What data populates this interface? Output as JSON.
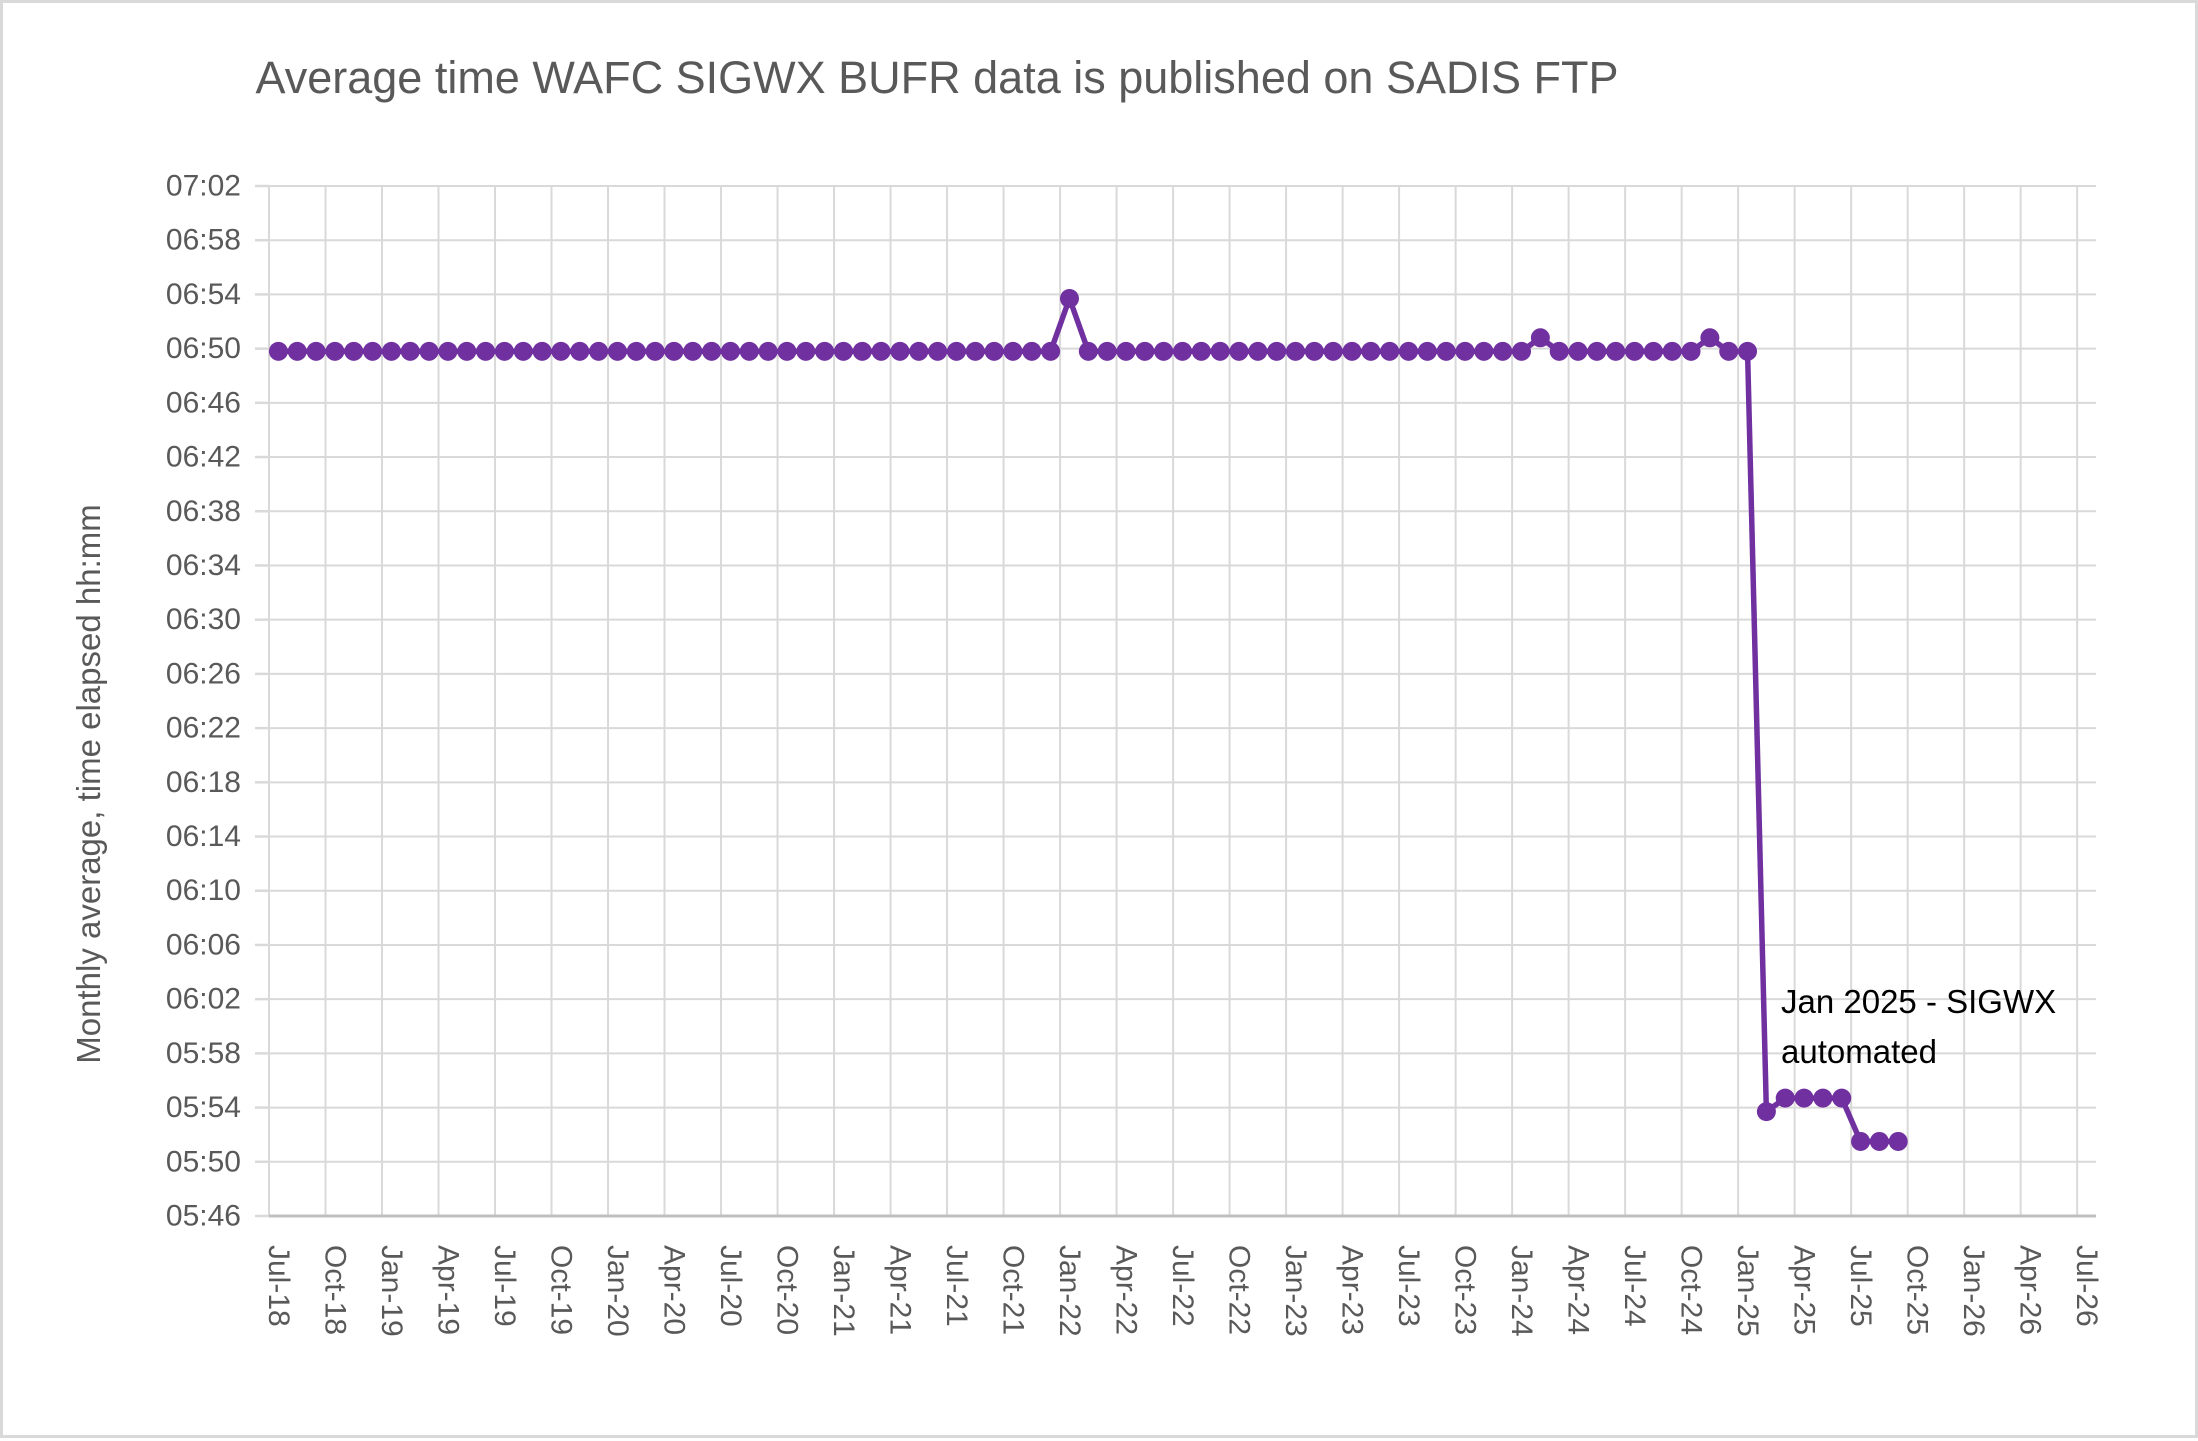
{
  "colors": {
    "series": "#7030A0",
    "text": "#595959",
    "gridline": "#D9D9D9",
    "axis_line": "#BFBFBF",
    "annotation_text": "#000000",
    "frame_border": "#D9D9D9"
  },
  "chart_data": {
    "type": "line",
    "title": "Average time WAFC SIGWX BUFR data is published on SADIS FTP",
    "ylabel": "Monthly average, time elapsed  hh:mm",
    "xlabel": "",
    "grid": true,
    "legend": false,
    "marker": "circle",
    "y_axis_range_hhmm": [
      "05:46",
      "07:02"
    ],
    "y_tick_step_minutes": 4,
    "y_tick_labels": [
      "07:02",
      "06:58",
      "06:54",
      "06:50",
      "06:46",
      "06:42",
      "06:38",
      "06:34",
      "06:30",
      "06:26",
      "06:22",
      "06:18",
      "06:14",
      "06:10",
      "06:06",
      "06:02",
      "05:58",
      "05:54",
      "05:50",
      "05:46"
    ],
    "x_tick_labels": [
      "Jul-18",
      "Oct-18",
      "Jan-19",
      "Apr-19",
      "Jul-19",
      "Oct-19",
      "Jan-20",
      "Apr-20",
      "Jul-20",
      "Oct-20",
      "Jan-21",
      "Apr-21",
      "Jul-21",
      "Oct-21",
      "Jan-22",
      "Apr-22",
      "Jul-22",
      "Oct-22",
      "Jan-23",
      "Apr-23",
      "Jul-23",
      "Oct-23",
      "Jan-24",
      "Apr-24",
      "Jul-24",
      "Oct-24",
      "Jan-25",
      "Apr-25",
      "Jul-25",
      "Oct-25",
      "Jan-26",
      "Apr-26",
      "Jul-26"
    ],
    "annotation": {
      "line1": "Jan 2025 - SIGWX",
      "line2": "automated"
    },
    "series": [
      {
        "color": "#7030A0",
        "points": [
          [
            "Jul-18",
            "06:49:48"
          ],
          [
            "Aug-18",
            "06:49:48"
          ],
          [
            "Sep-18",
            "06:49:48"
          ],
          [
            "Oct-18",
            "06:49:48"
          ],
          [
            "Nov-18",
            "06:49:48"
          ],
          [
            "Dec-18",
            "06:49:48"
          ],
          [
            "Jan-19",
            "06:49:48"
          ],
          [
            "Feb-19",
            "06:49:48"
          ],
          [
            "Mar-19",
            "06:49:48"
          ],
          [
            "Apr-19",
            "06:49:48"
          ],
          [
            "May-19",
            "06:49:48"
          ],
          [
            "Jun-19",
            "06:49:48"
          ],
          [
            "Jul-19",
            "06:49:48"
          ],
          [
            "Aug-19",
            "06:49:48"
          ],
          [
            "Sep-19",
            "06:49:48"
          ],
          [
            "Oct-19",
            "06:49:48"
          ],
          [
            "Nov-19",
            "06:49:48"
          ],
          [
            "Dec-19",
            "06:49:48"
          ],
          [
            "Jan-20",
            "06:49:48"
          ],
          [
            "Feb-20",
            "06:49:48"
          ],
          [
            "Mar-20",
            "06:49:48"
          ],
          [
            "Apr-20",
            "06:49:48"
          ],
          [
            "May-20",
            "06:49:48"
          ],
          [
            "Jun-20",
            "06:49:48"
          ],
          [
            "Jul-20",
            "06:49:48"
          ],
          [
            "Aug-20",
            "06:49:48"
          ],
          [
            "Sep-20",
            "06:49:48"
          ],
          [
            "Oct-20",
            "06:49:48"
          ],
          [
            "Nov-20",
            "06:49:48"
          ],
          [
            "Dec-20",
            "06:49:48"
          ],
          [
            "Jan-21",
            "06:49:48"
          ],
          [
            "Feb-21",
            "06:49:48"
          ],
          [
            "Mar-21",
            "06:49:48"
          ],
          [
            "Apr-21",
            "06:49:48"
          ],
          [
            "May-21",
            "06:49:48"
          ],
          [
            "Jun-21",
            "06:49:48"
          ],
          [
            "Jul-21",
            "06:49:48"
          ],
          [
            "Aug-21",
            "06:49:48"
          ],
          [
            "Sep-21",
            "06:49:48"
          ],
          [
            "Oct-21",
            "06:49:48"
          ],
          [
            "Nov-21",
            "06:49:48"
          ],
          [
            "Dec-21",
            "06:49:48"
          ],
          [
            "Jan-22",
            "06:53:42"
          ],
          [
            "Feb-22",
            "06:49:48"
          ],
          [
            "Mar-22",
            "06:49:48"
          ],
          [
            "Apr-22",
            "06:49:48"
          ],
          [
            "May-22",
            "06:49:48"
          ],
          [
            "Jun-22",
            "06:49:48"
          ],
          [
            "Jul-22",
            "06:49:48"
          ],
          [
            "Aug-22",
            "06:49:48"
          ],
          [
            "Sep-22",
            "06:49:48"
          ],
          [
            "Oct-22",
            "06:49:48"
          ],
          [
            "Nov-22",
            "06:49:48"
          ],
          [
            "Dec-22",
            "06:49:48"
          ],
          [
            "Jan-23",
            "06:49:48"
          ],
          [
            "Feb-23",
            "06:49:48"
          ],
          [
            "Mar-23",
            "06:49:48"
          ],
          [
            "Apr-23",
            "06:49:48"
          ],
          [
            "May-23",
            "06:49:48"
          ],
          [
            "Jun-23",
            "06:49:48"
          ],
          [
            "Jul-23",
            "06:49:48"
          ],
          [
            "Aug-23",
            "06:49:48"
          ],
          [
            "Sep-23",
            "06:49:48"
          ],
          [
            "Oct-23",
            "06:49:48"
          ],
          [
            "Nov-23",
            "06:49:48"
          ],
          [
            "Dec-23",
            "06:49:48"
          ],
          [
            "Jan-24",
            "06:49:48"
          ],
          [
            "Feb-24",
            "06:50:48"
          ],
          [
            "Mar-24",
            "06:49:48"
          ],
          [
            "Apr-24",
            "06:49:48"
          ],
          [
            "May-24",
            "06:49:48"
          ],
          [
            "Jun-24",
            "06:49:48"
          ],
          [
            "Jul-24",
            "06:49:48"
          ],
          [
            "Aug-24",
            "06:49:48"
          ],
          [
            "Sep-24",
            "06:49:48"
          ],
          [
            "Oct-24",
            "06:49:48"
          ],
          [
            "Nov-24",
            "06:50:48"
          ],
          [
            "Dec-24",
            "06:49:48"
          ],
          [
            "Jan-25",
            "06:49:48"
          ],
          [
            "Feb-25",
            "05:53:42"
          ],
          [
            "Mar-25",
            "05:54:42"
          ],
          [
            "Apr-25",
            "05:54:42"
          ],
          [
            "May-25",
            "05:54:42"
          ],
          [
            "Jun-25",
            "05:54:42"
          ],
          [
            "Jul-25",
            "05:51:30"
          ],
          [
            "Aug-25",
            "05:51:30"
          ],
          [
            "Sep-25",
            "05:51:30"
          ]
        ]
      }
    ]
  }
}
